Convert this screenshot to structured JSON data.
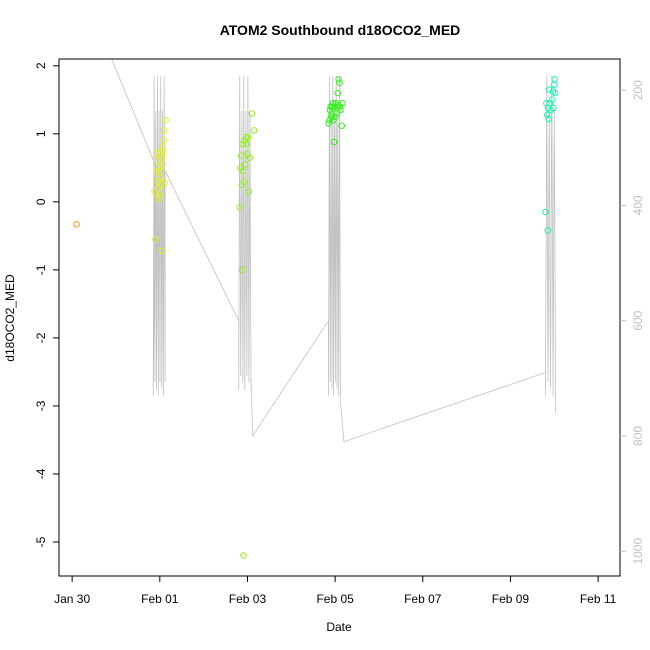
{
  "chart_data": {
    "type": "scatter",
    "title": "ATOM2 Southbound d18OCO2_MED",
    "xlabel": "Date",
    "ylabel": "d18OCO2_MED",
    "x_ticks": [
      "Jan 30",
      "Feb 01",
      "Feb 03",
      "Feb 05",
      "Feb 07",
      "Feb 09",
      "Feb 11"
    ],
    "x_tick_days": [
      0,
      2,
      4,
      6,
      8,
      10,
      12
    ],
    "xlim_days": [
      -0.3,
      12.5
    ],
    "y_ticks": [
      2,
      1,
      0,
      -1,
      -2,
      -3,
      -4,
      -5
    ],
    "ylim": [
      -5.5,
      2.1
    ],
    "y2_ticks": [
      200,
      400,
      600,
      800,
      1000
    ],
    "y2lim": [
      1043,
      146
    ],
    "background_trace_color": "#c0c0c0",
    "series": [
      {
        "color": "#ff8c1a",
        "points": [
          [
            0.1,
            -0.33
          ]
        ]
      },
      {
        "color": "#dff21a",
        "points": [
          [
            1.88,
            0.15
          ],
          [
            1.9,
            -0.55
          ],
          [
            1.92,
            0.72
          ],
          [
            1.93,
            0.45
          ],
          [
            1.95,
            0.3
          ],
          [
            1.96,
            0.2
          ],
          [
            1.97,
            0.6
          ],
          [
            1.98,
            0.05
          ],
          [
            1.99,
            0.5
          ],
          [
            2.0,
            0.1
          ],
          [
            2.0,
            0.35
          ],
          [
            2.01,
            0.7
          ],
          [
            2.02,
            0.25
          ],
          [
            2.03,
            0.45
          ],
          [
            2.04,
            -0.72
          ],
          [
            2.05,
            0.65
          ],
          [
            2.06,
            0.8
          ],
          [
            2.07,
            0.55
          ],
          [
            2.08,
            0.75
          ],
          [
            2.09,
            0.9
          ],
          [
            2.1,
            1.05
          ],
          [
            2.11,
            0.28
          ],
          [
            2.13,
            1.2
          ]
        ]
      },
      {
        "color": "#93f21a",
        "points": [
          [
            3.82,
            -0.08
          ],
          [
            3.84,
            0.5
          ],
          [
            3.86,
            0.68
          ],
          [
            3.87,
            0.25
          ],
          [
            3.88,
            -1.0
          ],
          [
            3.89,
            0.85
          ],
          [
            3.9,
            0.45
          ],
          [
            3.92,
            0.3
          ],
          [
            3.93,
            0.9
          ],
          [
            3.95,
            0.55
          ],
          [
            3.97,
            0.95
          ],
          [
            3.98,
            0.85
          ],
          [
            4.0,
            0.7
          ],
          [
            4.01,
            0.95
          ],
          [
            4.03,
            0.15
          ],
          [
            4.05,
            0.65
          ],
          [
            4.1,
            1.3
          ],
          [
            4.15,
            1.05
          ],
          [
            3.91,
            -5.2
          ]
        ]
      },
      {
        "color": "#2ef21a",
        "points": [
          [
            5.85,
            1.15
          ],
          [
            5.87,
            1.2
          ],
          [
            5.88,
            1.35
          ],
          [
            5.9,
            1.4
          ],
          [
            5.91,
            1.25
          ],
          [
            5.92,
            1.3
          ],
          [
            5.94,
            1.4
          ],
          [
            5.95,
            1.45
          ],
          [
            5.96,
            1.2
          ],
          [
            5.98,
            0.88
          ],
          [
            5.99,
            1.4
          ],
          [
            6.0,
            1.25
          ],
          [
            6.02,
            1.45
          ],
          [
            6.03,
            1.3
          ],
          [
            6.05,
            1.38
          ],
          [
            6.06,
            1.6
          ],
          [
            6.07,
            1.42
          ],
          [
            6.08,
            1.8
          ],
          [
            6.1,
            1.75
          ],
          [
            6.11,
            1.4
          ],
          [
            6.12,
            1.35
          ],
          [
            6.15,
            1.12
          ],
          [
            6.17,
            1.45
          ]
        ]
      },
      {
        "color": "#1af2b4",
        "points": [
          [
            10.8,
            -0.15
          ],
          [
            10.82,
            1.45
          ],
          [
            10.84,
            1.28
          ],
          [
            10.85,
            -0.42
          ],
          [
            10.86,
            1.38
          ],
          [
            10.87,
            1.22
          ],
          [
            10.88,
            1.65
          ],
          [
            10.9,
            1.45
          ],
          [
            10.92,
            1.35
          ],
          [
            10.95,
            1.5
          ],
          [
            10.97,
            1.62
          ],
          [
            10.98,
            1.38
          ],
          [
            11.0,
            1.72
          ],
          [
            11.01,
            1.8
          ],
          [
            11.02,
            1.6
          ]
        ]
      }
    ]
  }
}
